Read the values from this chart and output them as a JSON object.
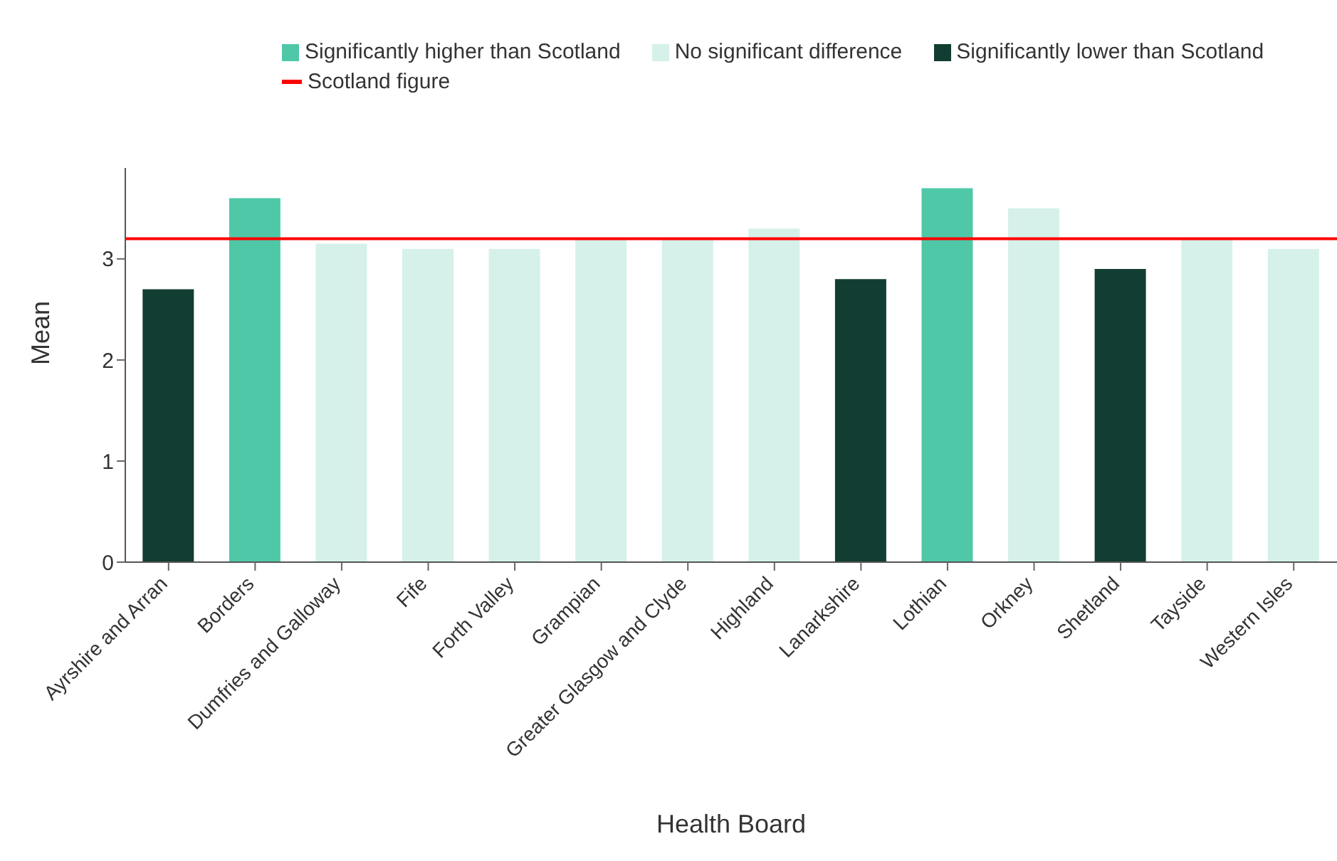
{
  "chart_data": {
    "type": "bar",
    "xlabel": "Health Board",
    "ylabel": "Mean",
    "categories": [
      "Ayrshire and Arran",
      "Borders",
      "Dumfries and Galloway",
      "Fife",
      "Forth Valley",
      "Grampian",
      "Greater Glasgow and Clyde",
      "Highland",
      "Lanarkshire",
      "Lothian",
      "Orkney",
      "Shetland",
      "Tayside",
      "Western Isles"
    ],
    "stacked": true,
    "series": [
      {
        "name": "Significantly higher than Scotland",
        "color": "#4fc8a8",
        "values": [
          null,
          3.6,
          null,
          null,
          null,
          null,
          null,
          null,
          null,
          3.7,
          null,
          null,
          null,
          null
        ]
      },
      {
        "name": "No significant difference",
        "color": "#d5f1ea",
        "values": [
          null,
          null,
          3.15,
          3.1,
          3.1,
          3.2,
          3.2,
          3.3,
          null,
          null,
          3.5,
          null,
          3.2,
          3.1
        ]
      },
      {
        "name": "Significantly lower than Scotland",
        "color": "#123d32",
        "values": [
          2.7,
          null,
          null,
          null,
          null,
          null,
          null,
          null,
          2.8,
          null,
          null,
          2.9,
          null,
          null
        ]
      }
    ],
    "ref_lines": [
      {
        "axis": "y",
        "value": 3.2,
        "label": "Scotland figure",
        "color": "#ff0000"
      }
    ],
    "ylim": [
      0,
      3.9
    ],
    "yticks": [
      0,
      1,
      2,
      3
    ],
    "legend": "top left"
  }
}
